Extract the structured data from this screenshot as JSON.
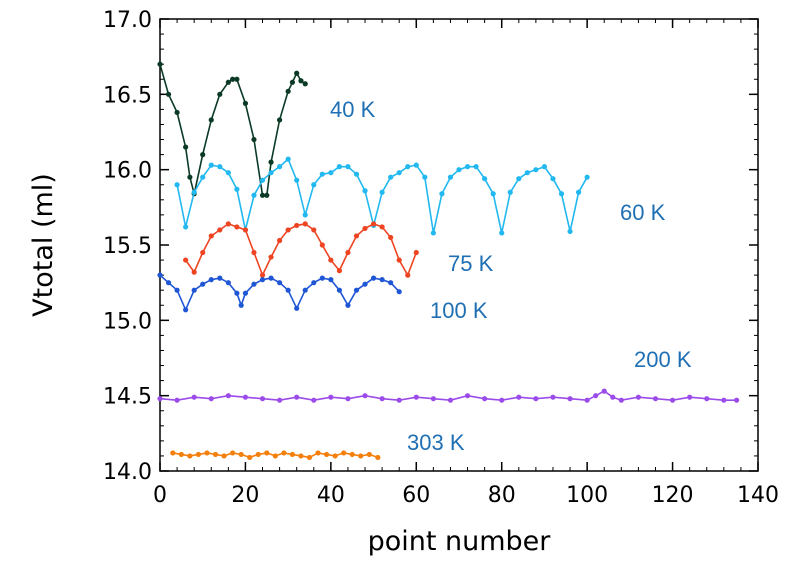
{
  "chart_data": {
    "type": "line",
    "title": "",
    "xlabel": "point number",
    "ylabel": "Vtotal (ml)",
    "xlim": [
      0,
      140
    ],
    "ylim": [
      14.0,
      17.0
    ],
    "x_ticks": [
      0,
      20,
      40,
      60,
      80,
      100,
      120,
      140
    ],
    "y_ticks": [
      14.0,
      14.5,
      15.0,
      15.5,
      16.0,
      16.5,
      17.0
    ],
    "x_tick_labels": [
      "0",
      "20",
      "40",
      "60",
      "80",
      "100",
      "120",
      "140"
    ],
    "y_tick_labels": [
      "14.0",
      "14.5",
      "15.0",
      "15.5",
      "16.0",
      "16.5",
      "17.0"
    ],
    "grid": false,
    "label_color": "#1f6fb4",
    "series": [
      {
        "name": "40 K",
        "color": "#0b3b26",
        "x": [
          0,
          2,
          4,
          6,
          7,
          8,
          10,
          12,
          14,
          16,
          17,
          18,
          20,
          22,
          24,
          25,
          26,
          28,
          30,
          31,
          32,
          33,
          34
        ],
        "y": [
          16.7,
          16.5,
          16.38,
          16.15,
          15.95,
          15.84,
          16.1,
          16.33,
          16.5,
          16.58,
          16.6,
          16.6,
          16.44,
          16.2,
          15.83,
          15.83,
          16.05,
          16.33,
          16.52,
          16.58,
          16.64,
          16.59,
          16.57
        ]
      },
      {
        "name": "60 K",
        "color": "#22b8f0",
        "x": [
          4,
          6,
          8,
          10,
          12,
          14,
          16,
          18,
          20,
          22,
          24,
          26,
          28,
          30,
          32,
          34,
          36,
          38,
          40,
          42,
          44,
          46,
          48,
          50,
          52,
          54,
          56,
          58,
          60,
          62,
          64,
          66,
          68,
          70,
          72,
          74,
          76,
          78,
          80,
          82,
          84,
          86,
          88,
          90,
          92,
          94,
          96,
          98,
          100
        ],
        "y": [
          15.9,
          15.62,
          15.85,
          15.95,
          16.03,
          16.02,
          15.98,
          15.87,
          15.6,
          15.83,
          15.93,
          15.98,
          16.02,
          16.07,
          15.93,
          15.7,
          15.9,
          15.97,
          15.98,
          16.02,
          16.02,
          15.97,
          15.86,
          15.63,
          15.85,
          15.95,
          15.98,
          16.02,
          16.03,
          15.95,
          15.58,
          15.84,
          15.95,
          16.0,
          16.02,
          16.02,
          15.94,
          15.84,
          15.58,
          15.85,
          15.94,
          15.98,
          16.0,
          16.02,
          15.94,
          15.84,
          15.59,
          15.85,
          15.95
        ]
      },
      {
        "name": "75 K",
        "color": "#ee4422",
        "x": [
          6,
          8,
          10,
          12,
          14,
          16,
          18,
          20,
          22,
          24,
          26,
          28,
          30,
          32,
          34,
          36,
          38,
          40,
          42,
          44,
          46,
          48,
          50,
          52,
          54,
          56,
          58,
          60
        ],
        "y": [
          15.4,
          15.32,
          15.45,
          15.56,
          15.6,
          15.64,
          15.62,
          15.6,
          15.45,
          15.3,
          15.42,
          15.53,
          15.6,
          15.63,
          15.64,
          15.6,
          15.5,
          15.4,
          15.33,
          15.45,
          15.56,
          15.61,
          15.64,
          15.62,
          15.55,
          15.4,
          15.3,
          15.45
        ]
      },
      {
        "name": "100 K",
        "color": "#1f56d6",
        "x": [
          0,
          2,
          4,
          6,
          8,
          10,
          12,
          14,
          16,
          18,
          19,
          20,
          22,
          24,
          26,
          28,
          30,
          32,
          34,
          36,
          38,
          40,
          42,
          44,
          46,
          48,
          50,
          52,
          54,
          56
        ],
        "y": [
          15.3,
          15.25,
          15.2,
          15.07,
          15.2,
          15.24,
          15.27,
          15.28,
          15.25,
          15.18,
          15.1,
          15.18,
          15.24,
          15.27,
          15.28,
          15.25,
          15.2,
          15.08,
          15.2,
          15.25,
          15.28,
          15.27,
          15.2,
          15.1,
          15.2,
          15.24,
          15.28,
          15.27,
          15.25,
          15.19
        ]
      },
      {
        "name": "200 K",
        "color": "#9b4bea",
        "x": [
          0,
          4,
          8,
          12,
          16,
          20,
          24,
          28,
          32,
          36,
          40,
          44,
          48,
          52,
          56,
          60,
          64,
          68,
          72,
          76,
          80,
          84,
          88,
          92,
          96,
          100,
          102,
          104,
          106,
          108,
          112,
          116,
          120,
          124,
          128,
          132,
          135
        ],
        "y": [
          14.48,
          14.47,
          14.49,
          14.48,
          14.5,
          14.49,
          14.48,
          14.47,
          14.49,
          14.47,
          14.49,
          14.48,
          14.5,
          14.48,
          14.47,
          14.49,
          14.48,
          14.47,
          14.5,
          14.48,
          14.47,
          14.49,
          14.48,
          14.49,
          14.48,
          14.47,
          14.5,
          14.53,
          14.49,
          14.47,
          14.49,
          14.48,
          14.47,
          14.49,
          14.48,
          14.47,
          14.47
        ]
      },
      {
        "name": "303 K",
        "color": "#f57f0b",
        "x": [
          3,
          5,
          7,
          9,
          11,
          13,
          15,
          17,
          19,
          21,
          23,
          25,
          27,
          29,
          31,
          33,
          35,
          37,
          39,
          41,
          43,
          45,
          47,
          49,
          51
        ],
        "y": [
          14.12,
          14.11,
          14.1,
          14.11,
          14.12,
          14.11,
          14.1,
          14.12,
          14.11,
          14.09,
          14.11,
          14.12,
          14.1,
          14.12,
          14.11,
          14.1,
          14.09,
          14.12,
          14.11,
          14.1,
          14.12,
          14.11,
          14.1,
          14.11,
          14.09
        ]
      }
    ]
  }
}
